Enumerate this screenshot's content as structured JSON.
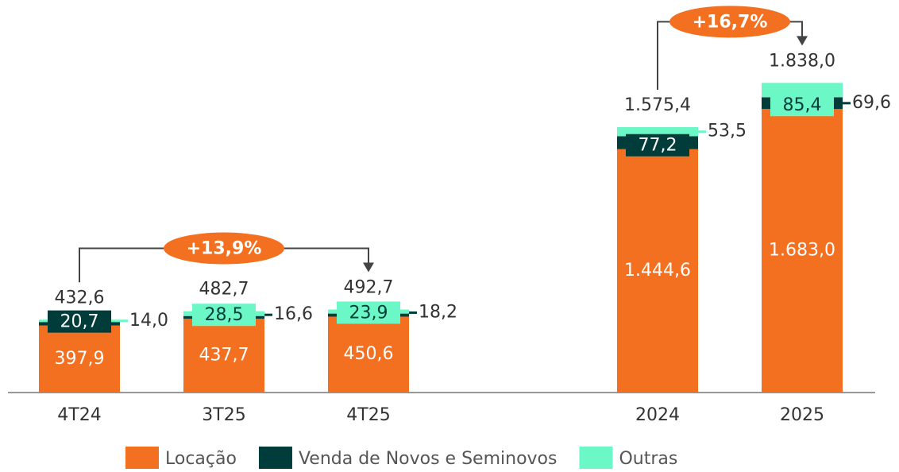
{
  "chart_data": {
    "type": "stacked_bar",
    "categories": [
      "4T24",
      "3T25",
      "4T25",
      null,
      "2024",
      "2025"
    ],
    "series": [
      {
        "name": "Locação",
        "color": "#f37021",
        "values": [
          397.9,
          437.7,
          450.6,
          null,
          1444.6,
          1683.0
        ],
        "value_labels": [
          "397,9",
          "437,7",
          "450,6",
          null,
          "1.444,6",
          "1.683,0"
        ]
      },
      {
        "name": "Venda de Novos e Seminovos",
        "color": "#003d3a",
        "values": [
          20.7,
          16.6,
          18.2,
          null,
          77.2,
          69.6
        ],
        "value_labels": [
          "20,7",
          "16,6",
          "18,2",
          null,
          "77,2",
          "69,6"
        ]
      },
      {
        "name": "Outras",
        "color": "#6bf7c6",
        "values": [
          14.0,
          28.5,
          23.9,
          null,
          53.5,
          85.4
        ],
        "value_labels": [
          "14,0",
          "28,5",
          "23,9",
          null,
          "53,5",
          "85,4"
        ]
      }
    ],
    "totals": {
      "values": [
        432.6,
        482.7,
        492.7,
        null,
        1575.4,
        1838.0
      ],
      "value_labels": [
        "432,6",
        "482,7",
        "492,7",
        null,
        "1.575,4",
        "1.838,0"
      ]
    },
    "annotations": [
      {
        "text": "+13,9%",
        "from": "4T24",
        "to": "4T25"
      },
      {
        "text": "+16,7%",
        "from": "2024",
        "to": "2025"
      }
    ],
    "ylim": [
      0,
      2000
    ]
  }
}
